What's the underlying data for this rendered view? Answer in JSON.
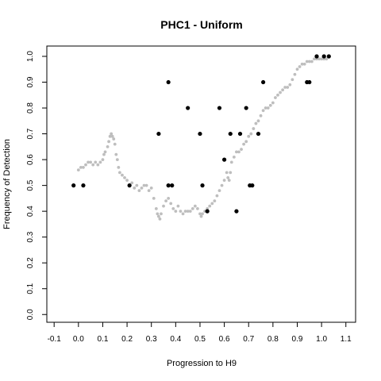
{
  "chart_data": {
    "type": "scatter",
    "title": "PHC1 - Uniform",
    "xlabel": "Progression to H9",
    "ylabel": "Frequency of Detection",
    "xlim": [
      -0.13,
      1.14
    ],
    "ylim": [
      -0.03,
      1.04
    ],
    "xticks": [
      "-0.1",
      "0.0",
      "0.1",
      "0.2",
      "0.3",
      "0.4",
      "0.5",
      "0.6",
      "0.7",
      "0.8",
      "0.9",
      "1.0",
      "1.1"
    ],
    "xtick_values": [
      -0.1,
      0.0,
      0.1,
      0.2,
      0.3,
      0.4,
      0.5,
      0.6,
      0.7,
      0.8,
      0.9,
      1.0,
      1.1
    ],
    "yticks": [
      "0.0",
      "0.1",
      "0.2",
      "0.3",
      "0.4",
      "0.5",
      "0.6",
      "0.7",
      "0.8",
      "0.9",
      "1.0"
    ],
    "ytick_values": [
      0.0,
      0.1,
      0.2,
      0.3,
      0.4,
      0.5,
      0.6,
      0.7,
      0.8,
      0.9,
      1.0
    ],
    "grid": false,
    "series": [
      {
        "color": "#bebebe",
        "marker": "small-dot",
        "points": [
          [
            0.0,
            0.56
          ],
          [
            0.01,
            0.57
          ],
          [
            0.02,
            0.57
          ],
          [
            0.03,
            0.58
          ],
          [
            0.04,
            0.59
          ],
          [
            0.05,
            0.59
          ],
          [
            0.06,
            0.58
          ],
          [
            0.07,
            0.59
          ],
          [
            0.08,
            0.58
          ],
          [
            0.09,
            0.59
          ],
          [
            0.1,
            0.6
          ],
          [
            0.105,
            0.62
          ],
          [
            0.11,
            0.63
          ],
          [
            0.12,
            0.65
          ],
          [
            0.125,
            0.67
          ],
          [
            0.13,
            0.69
          ],
          [
            0.135,
            0.7
          ],
          [
            0.14,
            0.69
          ],
          [
            0.145,
            0.68
          ],
          [
            0.15,
            0.66
          ],
          [
            0.155,
            0.62
          ],
          [
            0.16,
            0.6
          ],
          [
            0.165,
            0.57
          ],
          [
            0.17,
            0.55
          ],
          [
            0.18,
            0.54
          ],
          [
            0.19,
            0.53
          ],
          [
            0.2,
            0.52
          ],
          [
            0.21,
            0.5
          ],
          [
            0.22,
            0.51
          ],
          [
            0.23,
            0.49
          ],
          [
            0.24,
            0.5
          ],
          [
            0.25,
            0.48
          ],
          [
            0.26,
            0.49
          ],
          [
            0.27,
            0.5
          ],
          [
            0.28,
            0.5
          ],
          [
            0.29,
            0.48
          ],
          [
            0.3,
            0.49
          ],
          [
            0.31,
            0.45
          ],
          [
            0.32,
            0.41
          ],
          [
            0.325,
            0.39
          ],
          [
            0.33,
            0.38
          ],
          [
            0.335,
            0.37
          ],
          [
            0.34,
            0.39
          ],
          [
            0.35,
            0.42
          ],
          [
            0.36,
            0.44
          ],
          [
            0.37,
            0.45
          ],
          [
            0.38,
            0.43
          ],
          [
            0.39,
            0.41
          ],
          [
            0.4,
            0.4
          ],
          [
            0.41,
            0.42
          ],
          [
            0.42,
            0.4
          ],
          [
            0.43,
            0.39
          ],
          [
            0.44,
            0.4
          ],
          [
            0.45,
            0.4
          ],
          [
            0.46,
            0.4
          ],
          [
            0.47,
            0.41
          ],
          [
            0.48,
            0.42
          ],
          [
            0.49,
            0.41
          ],
          [
            0.5,
            0.39
          ],
          [
            0.505,
            0.38
          ],
          [
            0.51,
            0.39
          ],
          [
            0.52,
            0.4
          ],
          [
            0.53,
            0.41
          ],
          [
            0.54,
            0.42
          ],
          [
            0.55,
            0.43
          ],
          [
            0.56,
            0.44
          ],
          [
            0.57,
            0.46
          ],
          [
            0.58,
            0.48
          ],
          [
            0.59,
            0.5
          ],
          [
            0.6,
            0.52
          ],
          [
            0.61,
            0.55
          ],
          [
            0.615,
            0.53
          ],
          [
            0.62,
            0.52
          ],
          [
            0.625,
            0.55
          ],
          [
            0.63,
            0.59
          ],
          [
            0.64,
            0.61
          ],
          [
            0.65,
            0.63
          ],
          [
            0.66,
            0.63
          ],
          [
            0.67,
            0.64
          ],
          [
            0.68,
            0.66
          ],
          [
            0.69,
            0.67
          ],
          [
            0.7,
            0.69
          ],
          [
            0.71,
            0.7
          ],
          [
            0.72,
            0.72
          ],
          [
            0.73,
            0.74
          ],
          [
            0.74,
            0.75
          ],
          [
            0.75,
            0.77
          ],
          [
            0.76,
            0.79
          ],
          [
            0.77,
            0.8
          ],
          [
            0.78,
            0.8
          ],
          [
            0.79,
            0.81
          ],
          [
            0.8,
            0.82
          ],
          [
            0.81,
            0.84
          ],
          [
            0.82,
            0.85
          ],
          [
            0.83,
            0.86
          ],
          [
            0.84,
            0.87
          ],
          [
            0.85,
            0.88
          ],
          [
            0.86,
            0.88
          ],
          [
            0.87,
            0.89
          ],
          [
            0.88,
            0.91
          ],
          [
            0.89,
            0.93
          ],
          [
            0.9,
            0.95
          ],
          [
            0.91,
            0.96
          ],
          [
            0.92,
            0.97
          ],
          [
            0.93,
            0.97
          ],
          [
            0.94,
            0.98
          ],
          [
            0.95,
            0.98
          ],
          [
            0.96,
            0.98
          ],
          [
            0.97,
            0.99
          ],
          [
            0.98,
            0.99
          ],
          [
            0.99,
            0.99
          ],
          [
            1.0,
            0.99
          ],
          [
            1.01,
            0.99
          ],
          [
            1.02,
            0.99
          ]
        ]
      },
      {
        "color": "#000000",
        "marker": "dot",
        "points": [
          [
            -0.02,
            0.5
          ],
          [
            0.02,
            0.5
          ],
          [
            0.21,
            0.5
          ],
          [
            0.33,
            0.7
          ],
          [
            0.37,
            0.9
          ],
          [
            0.37,
            0.5
          ],
          [
            0.385,
            0.5
          ],
          [
            0.45,
            0.8
          ],
          [
            0.5,
            0.7
          ],
          [
            0.51,
            0.5
          ],
          [
            0.53,
            0.4
          ],
          [
            0.58,
            0.8
          ],
          [
            0.6,
            0.6
          ],
          [
            0.625,
            0.7
          ],
          [
            0.65,
            0.4
          ],
          [
            0.665,
            0.7
          ],
          [
            0.69,
            0.8
          ],
          [
            0.705,
            0.5
          ],
          [
            0.715,
            0.5
          ],
          [
            0.74,
            0.7
          ],
          [
            0.76,
            0.9
          ],
          [
            0.94,
            0.9
          ],
          [
            0.95,
            0.9
          ],
          [
            0.98,
            1.0
          ],
          [
            1.01,
            1.0
          ],
          [
            1.03,
            1.0
          ]
        ]
      }
    ]
  }
}
